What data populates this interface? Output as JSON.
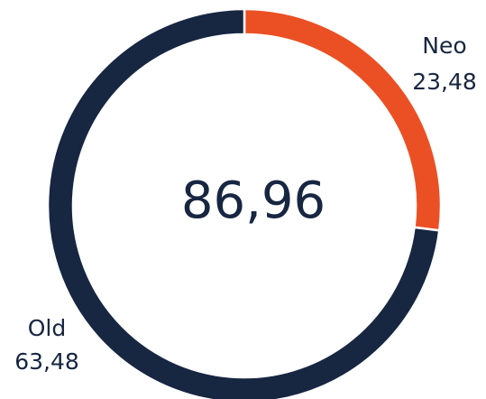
{
  "chart_data": {
    "type": "donut",
    "categories": [
      "Neo",
      "Old"
    ],
    "values": [
      23.48,
      63.48
    ],
    "value_labels": [
      "23,48",
      "63,48"
    ],
    "colors": [
      "#eb5024",
      "#172641"
    ],
    "center_label": "86,96"
  }
}
